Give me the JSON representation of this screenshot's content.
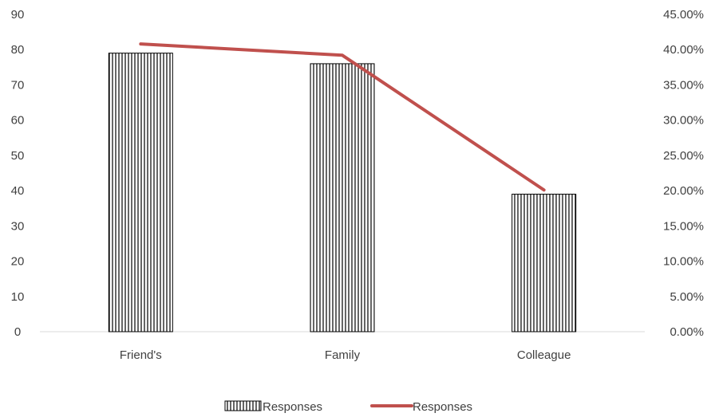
{
  "chart_data": {
    "type": "bar",
    "categories": [
      "Friend's",
      "Family",
      "Colleague"
    ],
    "series": [
      {
        "name": "Responses",
        "type": "bar",
        "axis": "left",
        "values": [
          79,
          76,
          39
        ],
        "pattern": "vertical-stripes",
        "color": "#000000"
      },
      {
        "name": "Responses",
        "type": "line",
        "axis": "right",
        "values": [
          40.8,
          39.2,
          20.1
        ],
        "unit": "%",
        "color": "#c0504d"
      }
    ],
    "y_left": {
      "min": 0,
      "max": 90,
      "step": 10,
      "tick_labels": [
        "0",
        "10",
        "20",
        "30",
        "40",
        "50",
        "60",
        "70",
        "80",
        "90"
      ]
    },
    "y_right": {
      "min": 0,
      "max": 45,
      "step": 5,
      "tick_labels": [
        "0.00%",
        "5.00%",
        "10.00%",
        "15.00%",
        "20.00%",
        "25.00%",
        "30.00%",
        "35.00%",
        "40.00%",
        "45.00%"
      ]
    },
    "legend": {
      "position": "bottom",
      "entries": [
        "Responses",
        "Responses"
      ]
    },
    "grid": false
  }
}
